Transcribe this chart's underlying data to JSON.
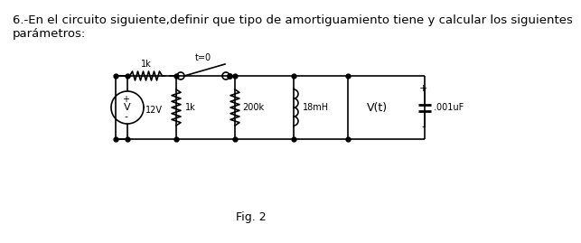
{
  "title_line1": "6.-En el circuito siguiente,definir que tipo de amortiguamiento tiene y calcular los siguientes",
  "title_line2": "parámetros:",
  "fig_label": "Fig. 2",
  "bg_color": "#ffffff",
  "line_color": "#000000",
  "font_size_title": 9.5,
  "font_size_fig": 9,
  "circuit": {
    "resistor1_label": "1k",
    "switch_label": "t=0",
    "voltage_label": "12V",
    "res_parallel_label": "1k",
    "res200k_label": "200k",
    "inductor_label": "18mH",
    "vt_label": "V(t)",
    "cap_label": ".001uF",
    "plus_label": "+",
    "minus_label": "-",
    "vt_plus": "+",
    "vt_minus": "-"
  }
}
